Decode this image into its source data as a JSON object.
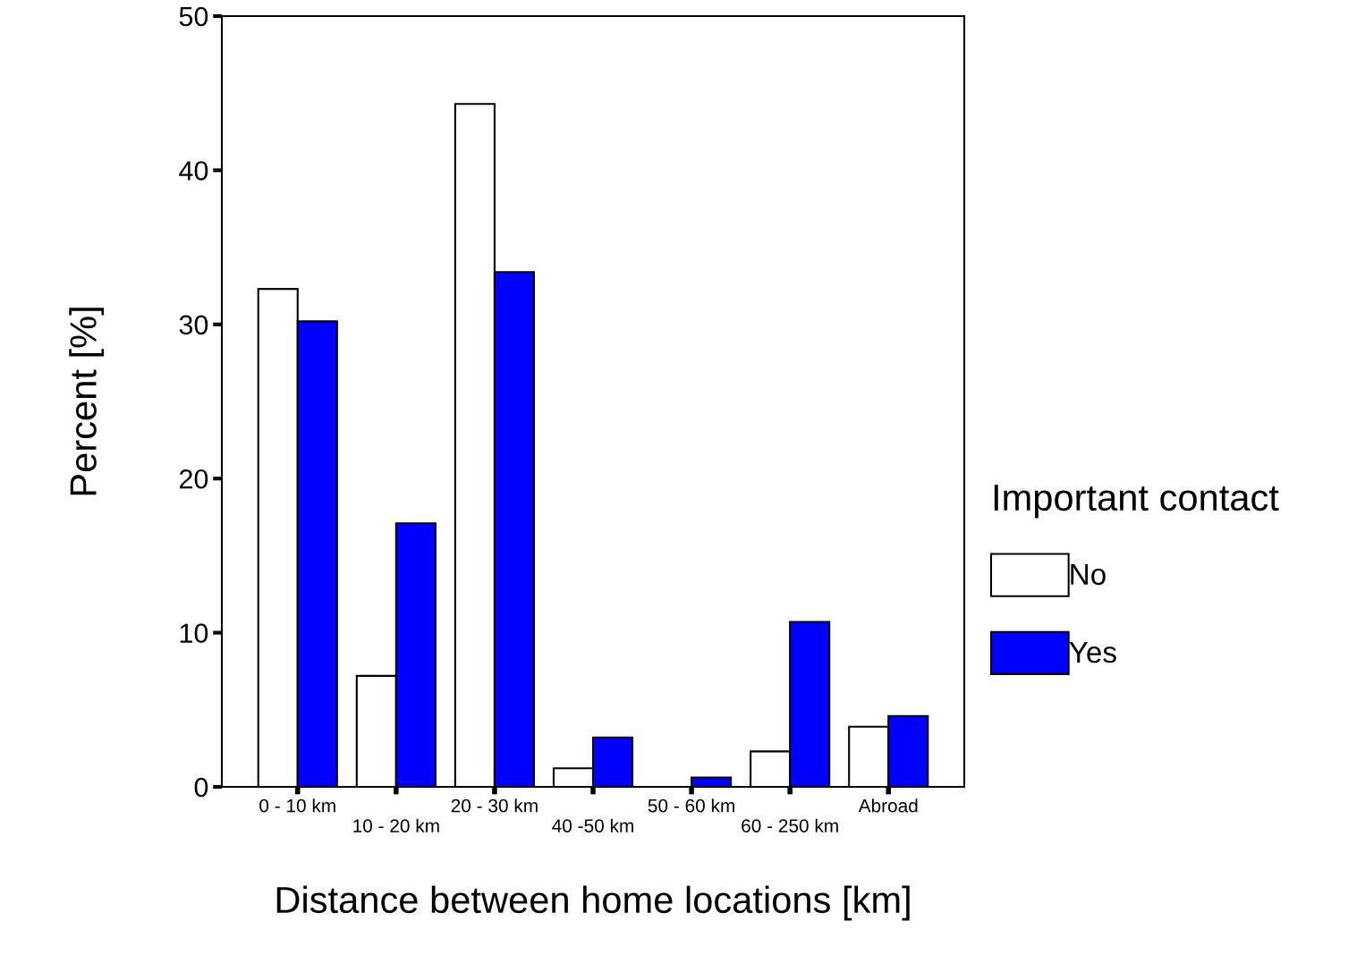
{
  "chart_data": {
    "type": "bar",
    "xlabel": "Distance between home locations [km]",
    "ylabel": "Percent [%]",
    "legend_title": "Important contact",
    "categories": [
      "0 - 10 km",
      "10 - 20 km",
      "20 - 30 km",
      "40 -50 km",
      "50 - 60 km",
      "60 - 250 km",
      "Abroad"
    ],
    "series": [
      {
        "name": "No",
        "color": "#ffffff",
        "values": [
          32.3,
          7.2,
          44.3,
          1.2,
          0,
          2.3,
          3.9
        ]
      },
      {
        "name": "Yes",
        "color": "#0000ff",
        "values": [
          30.2,
          17.1,
          33.4,
          3.2,
          0.6,
          10.7,
          4.6
        ]
      }
    ],
    "ylim": [
      0,
      50
    ],
    "yticks": [
      0,
      10,
      20,
      30,
      40,
      50
    ],
    "grid": false,
    "legend": "right"
  }
}
